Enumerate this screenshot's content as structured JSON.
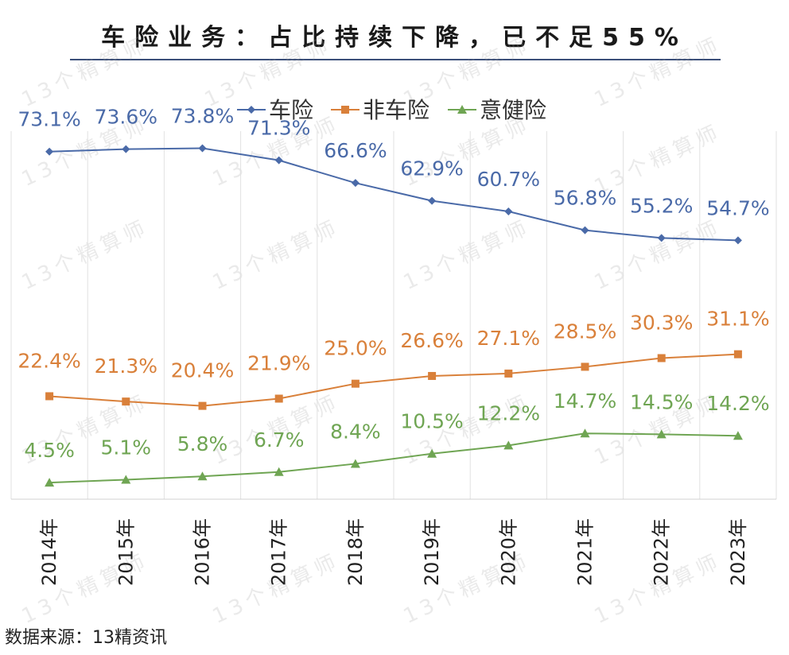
{
  "title": "车险业务：占比持续下降，已不足55%",
  "source": "数据来源：13精资讯",
  "watermark": "13个精算师",
  "chart_data": {
    "type": "line",
    "categories": [
      "2014年",
      "2015年",
      "2016年",
      "2017年",
      "2018年",
      "2019年",
      "2020年",
      "2021年",
      "2022年",
      "2023年"
    ],
    "series": [
      {
        "name": "车险",
        "color": "#4a6aa8",
        "marker": "diamond",
        "values": [
          73.1,
          73.6,
          73.8,
          71.3,
          66.6,
          62.9,
          60.7,
          56.8,
          55.2,
          54.7
        ],
        "labels": [
          "73.1%",
          "73.6%",
          "73.8%",
          "71.3%",
          "66.6%",
          "62.9%",
          "60.7%",
          "56.8%",
          "55.2%",
          "54.7%"
        ]
      },
      {
        "name": "非车险",
        "color": "#d9803a",
        "marker": "square",
        "values": [
          22.4,
          21.3,
          20.4,
          21.9,
          25.0,
          26.6,
          27.1,
          28.5,
          30.3,
          31.1
        ],
        "labels": [
          "22.4%",
          "21.3%",
          "20.4%",
          "21.9%",
          "25.0%",
          "26.6%",
          "27.1%",
          "28.5%",
          "30.3%",
          "31.1%"
        ]
      },
      {
        "name": "意健险",
        "color": "#6fa553",
        "marker": "triangle",
        "values": [
          4.5,
          5.1,
          5.8,
          6.7,
          8.4,
          10.5,
          12.2,
          14.7,
          14.5,
          14.2
        ],
        "labels": [
          "4.5%",
          "5.1%",
          "5.8%",
          "6.7%",
          "8.4%",
          "10.5%",
          "12.2%",
          "14.7%",
          "14.5%",
          "14.2%"
        ]
      }
    ],
    "legend": "top",
    "grid": "vertical"
  }
}
